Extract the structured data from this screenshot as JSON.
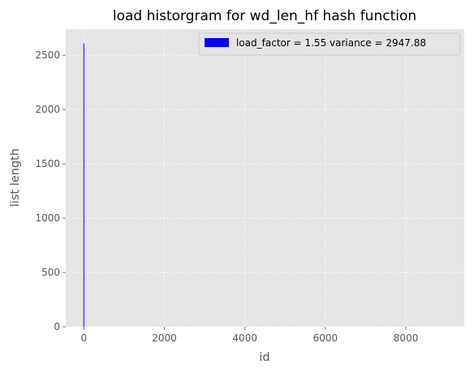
{
  "chart_data": {
    "type": "bar",
    "title": "load historgram for wd_len_hf hash function",
    "xlabel": "id",
    "ylabel": "list length",
    "xlim": [
      -450,
      9450
    ],
    "ylim": [
      0,
      2740
    ],
    "xticks": [
      0,
      2000,
      4000,
      6000,
      8000
    ],
    "yticks": [
      0,
      500,
      1000,
      1500,
      2000,
      2500
    ],
    "grid": true,
    "legend_position": "top-right",
    "series": [
      {
        "name": "load_factor = 1.55 variance = 2947.88",
        "color": "#0000ff",
        "bars": [
          {
            "x": 0,
            "value": 2610
          }
        ]
      }
    ]
  }
}
